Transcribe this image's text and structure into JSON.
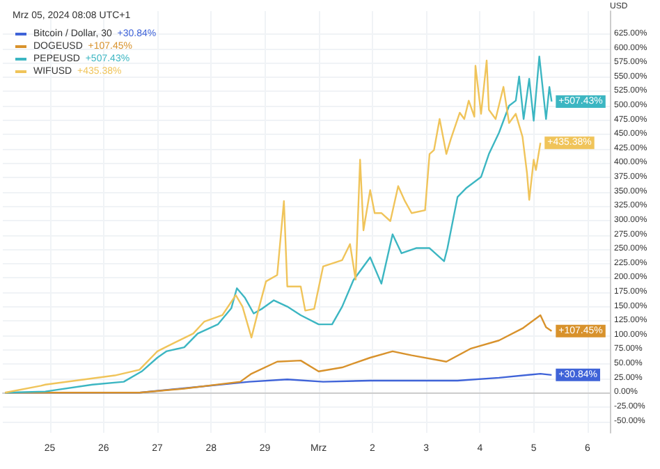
{
  "chart_data": {
    "type": "line",
    "title": "Mrz 05, 2024 08:08 UTC+1",
    "ylabel": "USD",
    "xlim": [
      "2024-02-24T03:00",
      "2024-03-06T10:00"
    ],
    "xticks": [
      {
        "value": "2024-02-25",
        "label": "25"
      },
      {
        "value": "2024-02-26",
        "label": "26"
      },
      {
        "value": "2024-02-27",
        "label": "27"
      },
      {
        "value": "2024-02-28",
        "label": "28"
      },
      {
        "value": "2024-02-29",
        "label": "29"
      },
      {
        "value": "2024-03-01",
        "label": "Mrz"
      },
      {
        "value": "2024-03-02",
        "label": "2"
      },
      {
        "value": "2024-03-03",
        "label": "3"
      },
      {
        "value": "2024-03-04",
        "label": "4"
      },
      {
        "value": "2024-03-05",
        "label": "5"
      },
      {
        "value": "2024-03-06",
        "label": "6"
      }
    ],
    "ylim": [
      -70,
      665
    ],
    "yticks": [
      {
        "value": -50,
        "label": "-50.00%"
      },
      {
        "value": -25,
        "label": "-25.00%"
      },
      {
        "value": 0,
        "label": "0.00%"
      },
      {
        "value": 25,
        "label": "25.00%"
      },
      {
        "value": 50,
        "label": "50.00%"
      },
      {
        "value": 75,
        "label": "75.00%"
      },
      {
        "value": 100,
        "label": "100.00%"
      },
      {
        "value": 125,
        "label": "125.00%"
      },
      {
        "value": 150,
        "label": "150.00%"
      },
      {
        "value": 175,
        "label": "175.00%"
      },
      {
        "value": 200,
        "label": "200.00%"
      },
      {
        "value": 225,
        "label": "225.00%"
      },
      {
        "value": 250,
        "label": "250.00%"
      },
      {
        "value": 275,
        "label": "275.00%"
      },
      {
        "value": 300,
        "label": "300.00%"
      },
      {
        "value": 325,
        "label": "325.00%"
      },
      {
        "value": 350,
        "label": "350.00%"
      },
      {
        "value": 375,
        "label": "375.00%"
      },
      {
        "value": 400,
        "label": "400.00%"
      },
      {
        "value": 425,
        "label": "425.00%"
      },
      {
        "value": 450,
        "label": "450.00%"
      },
      {
        "value": 475,
        "label": "475.00%"
      },
      {
        "value": 500,
        "label": "500.00%"
      },
      {
        "value": 525,
        "label": "525.00%"
      },
      {
        "value": 550,
        "label": "550.00%"
      },
      {
        "value": 575,
        "label": "575.00%"
      },
      {
        "value": 600,
        "label": "600.00%"
      },
      {
        "value": 625,
        "label": "625.00%"
      }
    ],
    "grid": true,
    "legend": "top left",
    "line_style": "solid",
    "series": [
      {
        "name": "Bitcoin / Dollar, 30",
        "color": "#3f63d8",
        "x": [
          "2024-02-24T04:00",
          "2024-02-26T16:00",
          "2024-02-28T17:00",
          "2024-02-29T10:00",
          "2024-03-01T02:00",
          "2024-03-01T23:00",
          "2024-03-02T07:00",
          "2024-03-03T14:00",
          "2024-03-04T08:30",
          "2024-03-05T03:00",
          "2024-03-05T08:00"
        ],
        "values": [
          0,
          0,
          19,
          23,
          19,
          21,
          21,
          21,
          26,
          33,
          30.84
        ],
        "value_labels": [
          null,
          null,
          null,
          null,
          null,
          null,
          null,
          null,
          null,
          null,
          "+30.84%"
        ]
      },
      {
        "name": "DOGEUSD",
        "color": "#d8922c",
        "x": [
          "2024-02-24T04:00",
          "2024-02-26T16:00",
          "2024-02-27T12:00",
          "2024-02-28T13:00",
          "2024-02-28T18:00",
          "2024-02-29T05:30",
          "2024-02-29T16:00",
          "2024-03-01T00:00",
          "2024-03-01T10:30",
          "2024-03-01T23:00",
          "2024-03-02T09:00",
          "2024-03-02T17:30",
          "2024-03-03T09:00",
          "2024-03-03T20:00",
          "2024-03-04T08:30",
          "2024-03-04T19:00",
          "2024-03-05T03:00",
          "2024-03-05T05:30",
          "2024-03-05T08:00"
        ],
        "values": [
          0,
          0,
          7,
          19,
          33,
          54,
          56,
          37,
          44,
          61,
          72,
          65,
          54,
          77,
          91,
          112,
          135,
          114,
          107.45
        ],
        "value_labels": [
          null,
          null,
          null,
          null,
          null,
          null,
          null,
          null,
          null,
          null,
          null,
          null,
          null,
          null,
          null,
          null,
          null,
          null,
          "+107.45%"
        ]
      },
      {
        "name": "PEPEUSD",
        "color": "#3cb6c2",
        "x": [
          "2024-02-24T04:00",
          "2024-02-24T22:00",
          "2024-02-25T19:00",
          "2024-02-26T09:00",
          "2024-02-26T17:00",
          "2024-02-27T00:00",
          "2024-02-27T04:00",
          "2024-02-27T12:00",
          "2024-02-27T18:00",
          "2024-02-28T03:00",
          "2024-02-28T09:00",
          "2024-02-28T11:30",
          "2024-02-28T15:00",
          "2024-02-28T19:00",
          "2024-02-28T23:00",
          "2024-02-29T04:00",
          "2024-02-29T10:00",
          "2024-02-29T16:00",
          "2024-03-01T00:00",
          "2024-03-01T06:00",
          "2024-03-01T10:30",
          "2024-03-01T15:30",
          "2024-03-01T23:00",
          "2024-03-02T04:00",
          "2024-03-02T09:00",
          "2024-03-02T13:00",
          "2024-03-02T19:30",
          "2024-03-03T01:30",
          "2024-03-03T08:00",
          "2024-03-03T09:30",
          "2024-03-03T14:00",
          "2024-03-03T18:00",
          "2024-03-04T00:30",
          "2024-03-04T04:00",
          "2024-03-04T08:30",
          "2024-03-04T13:00",
          "2024-03-04T16:00",
          "2024-03-04T17:30",
          "2024-03-04T19:30",
          "2024-03-04T22:00",
          "2024-03-05T00:00",
          "2024-03-05T02:30",
          "2024-03-05T05:30",
          "2024-03-05T07:00",
          "2024-03-05T08:00"
        ],
        "values": [
          0,
          2,
          14,
          19,
          37,
          61,
          72,
          79,
          103,
          119,
          147,
          182,
          166,
          138,
          147,
          161,
          150,
          135,
          119,
          119,
          150,
          196,
          236,
          190,
          276,
          243,
          252,
          252,
          229,
          252,
          341,
          357,
          376,
          416,
          453,
          500,
          509,
          551,
          477,
          547,
          474,
          586,
          477,
          533,
          507.43
        ],
        "value_labels": [
          null,
          null,
          null,
          null,
          null,
          null,
          null,
          null,
          null,
          null,
          null,
          null,
          null,
          null,
          null,
          null,
          null,
          null,
          null,
          null,
          null,
          null,
          null,
          null,
          null,
          null,
          null,
          null,
          null,
          null,
          null,
          null,
          null,
          null,
          null,
          null,
          null,
          null,
          null,
          null,
          null,
          null,
          null,
          null,
          "+507.43%"
        ]
      },
      {
        "name": "WIFUSD",
        "color": "#f0c45a",
        "x": [
          "2024-02-24T04:00",
          "2024-02-24T20:00",
          "2024-02-24T22:00",
          "2024-02-26T05:00",
          "2024-02-26T16:00",
          "2024-02-27T00:00",
          "2024-02-27T04:00",
          "2024-02-27T16:00",
          "2024-02-27T21:00",
          "2024-02-28T05:00",
          "2024-02-28T11:00",
          "2024-02-28T14:00",
          "2024-02-28T18:00",
          "2024-02-28T21:30",
          "2024-02-29T00:30",
          "2024-02-29T05:30",
          "2024-02-29T08:30",
          "2024-02-29T10:00",
          "2024-02-29T16:00",
          "2024-02-29T18:00",
          "2024-02-29T22:00",
          "2024-03-01T02:00",
          "2024-03-01T10:30",
          "2024-03-01T14:00",
          "2024-03-01T16:30",
          "2024-03-01T18:30",
          "2024-03-01T20:00",
          "2024-03-01T23:00",
          "2024-03-02T01:00",
          "2024-03-02T04:00",
          "2024-03-02T08:00",
          "2024-03-02T11:30",
          "2024-03-02T14:30",
          "2024-03-02T17:30",
          "2024-03-02T23:30",
          "2024-03-03T01:30",
          "2024-03-03T03:30",
          "2024-03-03T06:00",
          "2024-03-03T09:00",
          "2024-03-03T11:00",
          "2024-03-03T15:00",
          "2024-03-03T17:00",
          "2024-03-03T19:00",
          "2024-03-03T21:30",
          "2024-03-03T22:00",
          "2024-03-04T00:30",
          "2024-03-04T03:00",
          "2024-03-04T04:00",
          "2024-03-04T07:00",
          "2024-03-04T10:30",
          "2024-03-04T13:00",
          "2024-03-04T16:00",
          "2024-03-04T19:00",
          "2024-03-04T21:00",
          "2024-03-04T22:00",
          "2024-03-05T00:00",
          "2024-03-05T01:00",
          "2024-03-05T03:00"
        ],
        "values": [
          0,
          12,
          14,
          30,
          40,
          72,
          80,
          103,
          124,
          135,
          170,
          150,
          96,
          150,
          194,
          205,
          334,
          185,
          185,
          143,
          146,
          220,
          231,
          259,
          197,
          406,
          283,
          353,
          313,
          313,
          299,
          360,
          334,
          313,
          318,
          416,
          423,
          477,
          416,
          442,
          488,
          477,
          509,
          481,
          570,
          486,
          579,
          493,
          477,
          533,
          470,
          486,
          446,
          383,
          336,
          406,
          388,
          435.38
        ],
        "value_labels": [
          null,
          null,
          null,
          null,
          null,
          null,
          null,
          null,
          null,
          null,
          null,
          null,
          null,
          null,
          null,
          null,
          null,
          null,
          null,
          null,
          null,
          null,
          null,
          null,
          null,
          null,
          null,
          null,
          null,
          null,
          null,
          null,
          null,
          null,
          null,
          null,
          null,
          null,
          null,
          null,
          null,
          null,
          null,
          null,
          null,
          null,
          null,
          null,
          null,
          null,
          null,
          null,
          null,
          null,
          null,
          null,
          null,
          "+435.38%"
        ]
      }
    ]
  }
}
